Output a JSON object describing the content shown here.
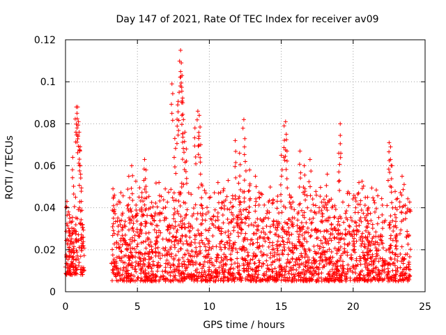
{
  "chart_data": {
    "type": "scatter",
    "title": "Day 147 of 2021, Rate Of TEC Index for receiver av09",
    "xlabel": "GPS time / hours",
    "ylabel": "ROTI / TECUs",
    "xlim": [
      0,
      25
    ],
    "ylim": [
      0,
      0.12
    ],
    "xticks": [
      "0",
      "5",
      "10",
      "15",
      "20",
      "25"
    ],
    "yticks": [
      "0",
      "0.02",
      "0.04",
      "0.06",
      "0.08",
      "0.1",
      "0.12"
    ],
    "grid": true,
    "marker": "+",
    "color": "#ff0000",
    "observed_ranges": [
      {
        "x": [
          0.0,
          1.3
        ],
        "y_typical": [
          0.008,
          0.045
        ]
      },
      {
        "x": [
          3.2,
          24.0
        ],
        "y_typical": [
          0.005,
          0.055
        ]
      }
    ],
    "series": [
      {
        "x": [
          0.1,
          0.2,
          0.3,
          0.4,
          0.5,
          0.6,
          0.7,
          0.75,
          0.8,
          0.85,
          0.9,
          0.95,
          1.0,
          1.05,
          1.1,
          3.3,
          3.4,
          4.4,
          4.6,
          5.3,
          5.5,
          5.6,
          6.5,
          7.4,
          7.6,
          7.8,
          7.9,
          8.0,
          8.05,
          8.1,
          8.15,
          8.2,
          8.3,
          8.4,
          9.0,
          9.2,
          9.3,
          9.4,
          10.6,
          11.0,
          11.8,
          12.1,
          12.4,
          12.5,
          12.8,
          13.2,
          15.0,
          15.2,
          15.3,
          15.4,
          16.3,
          16.6,
          17.0,
          18.2,
          19.0,
          19.1,
          20.4,
          21.0,
          22.5,
          22.6,
          22.7,
          23.0,
          23.4
        ],
        "y": [
          0.043,
          0.038,
          0.035,
          0.033,
          0.064,
          0.029,
          0.045,
          0.088,
          0.085,
          0.088,
          0.081,
          0.076,
          0.067,
          0.056,
          0.043,
          0.049,
          0.046,
          0.055,
          0.06,
          0.045,
          0.063,
          0.058,
          0.052,
          0.099,
          0.073,
          0.089,
          0.095,
          0.115,
          0.109,
          0.103,
          0.09,
          0.082,
          0.076,
          0.068,
          0.078,
          0.086,
          0.084,
          0.07,
          0.052,
          0.049,
          0.072,
          0.066,
          0.082,
          0.062,
          0.058,
          0.055,
          0.065,
          0.079,
          0.081,
          0.067,
          0.067,
          0.06,
          0.063,
          0.056,
          0.066,
          0.08,
          0.052,
          0.045,
          0.071,
          0.069,
          0.06,
          0.044,
          0.055
        ]
      }
    ]
  }
}
